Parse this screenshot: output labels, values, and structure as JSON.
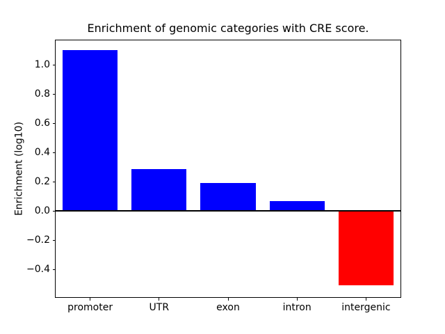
{
  "chart_data": {
    "type": "bar",
    "title": "Enrichment of genomic categories with CRE score.",
    "ylabel": "Enrichment (log10)",
    "xlabel": "",
    "categories": [
      "promoter",
      "UTR",
      "exon",
      "intron",
      "intergenic"
    ],
    "values": [
      1.1,
      0.29,
      0.19,
      0.07,
      -0.51
    ],
    "bar_colors": [
      "#0000ff",
      "#0000ff",
      "#0000ff",
      "#0000ff",
      "#ff0000"
    ],
    "positive_color": "#0000ff",
    "negative_color": "#ff0000",
    "ylim": [
      -0.589,
      1.169
    ],
    "yticks": [
      1.0,
      0.8,
      0.6,
      0.4,
      0.2,
      0.0,
      -0.2,
      -0.4
    ],
    "ytick_labels": [
      "1.0",
      "0.8",
      "0.6",
      "0.4",
      "0.2",
      "0.0",
      "−0.2",
      "−0.4"
    ],
    "bar_width_fraction": 0.8,
    "zero_line": true,
    "grid": false,
    "legend_position": "none",
    "background_color": "#ffffff",
    "spine_color": "#000000"
  }
}
